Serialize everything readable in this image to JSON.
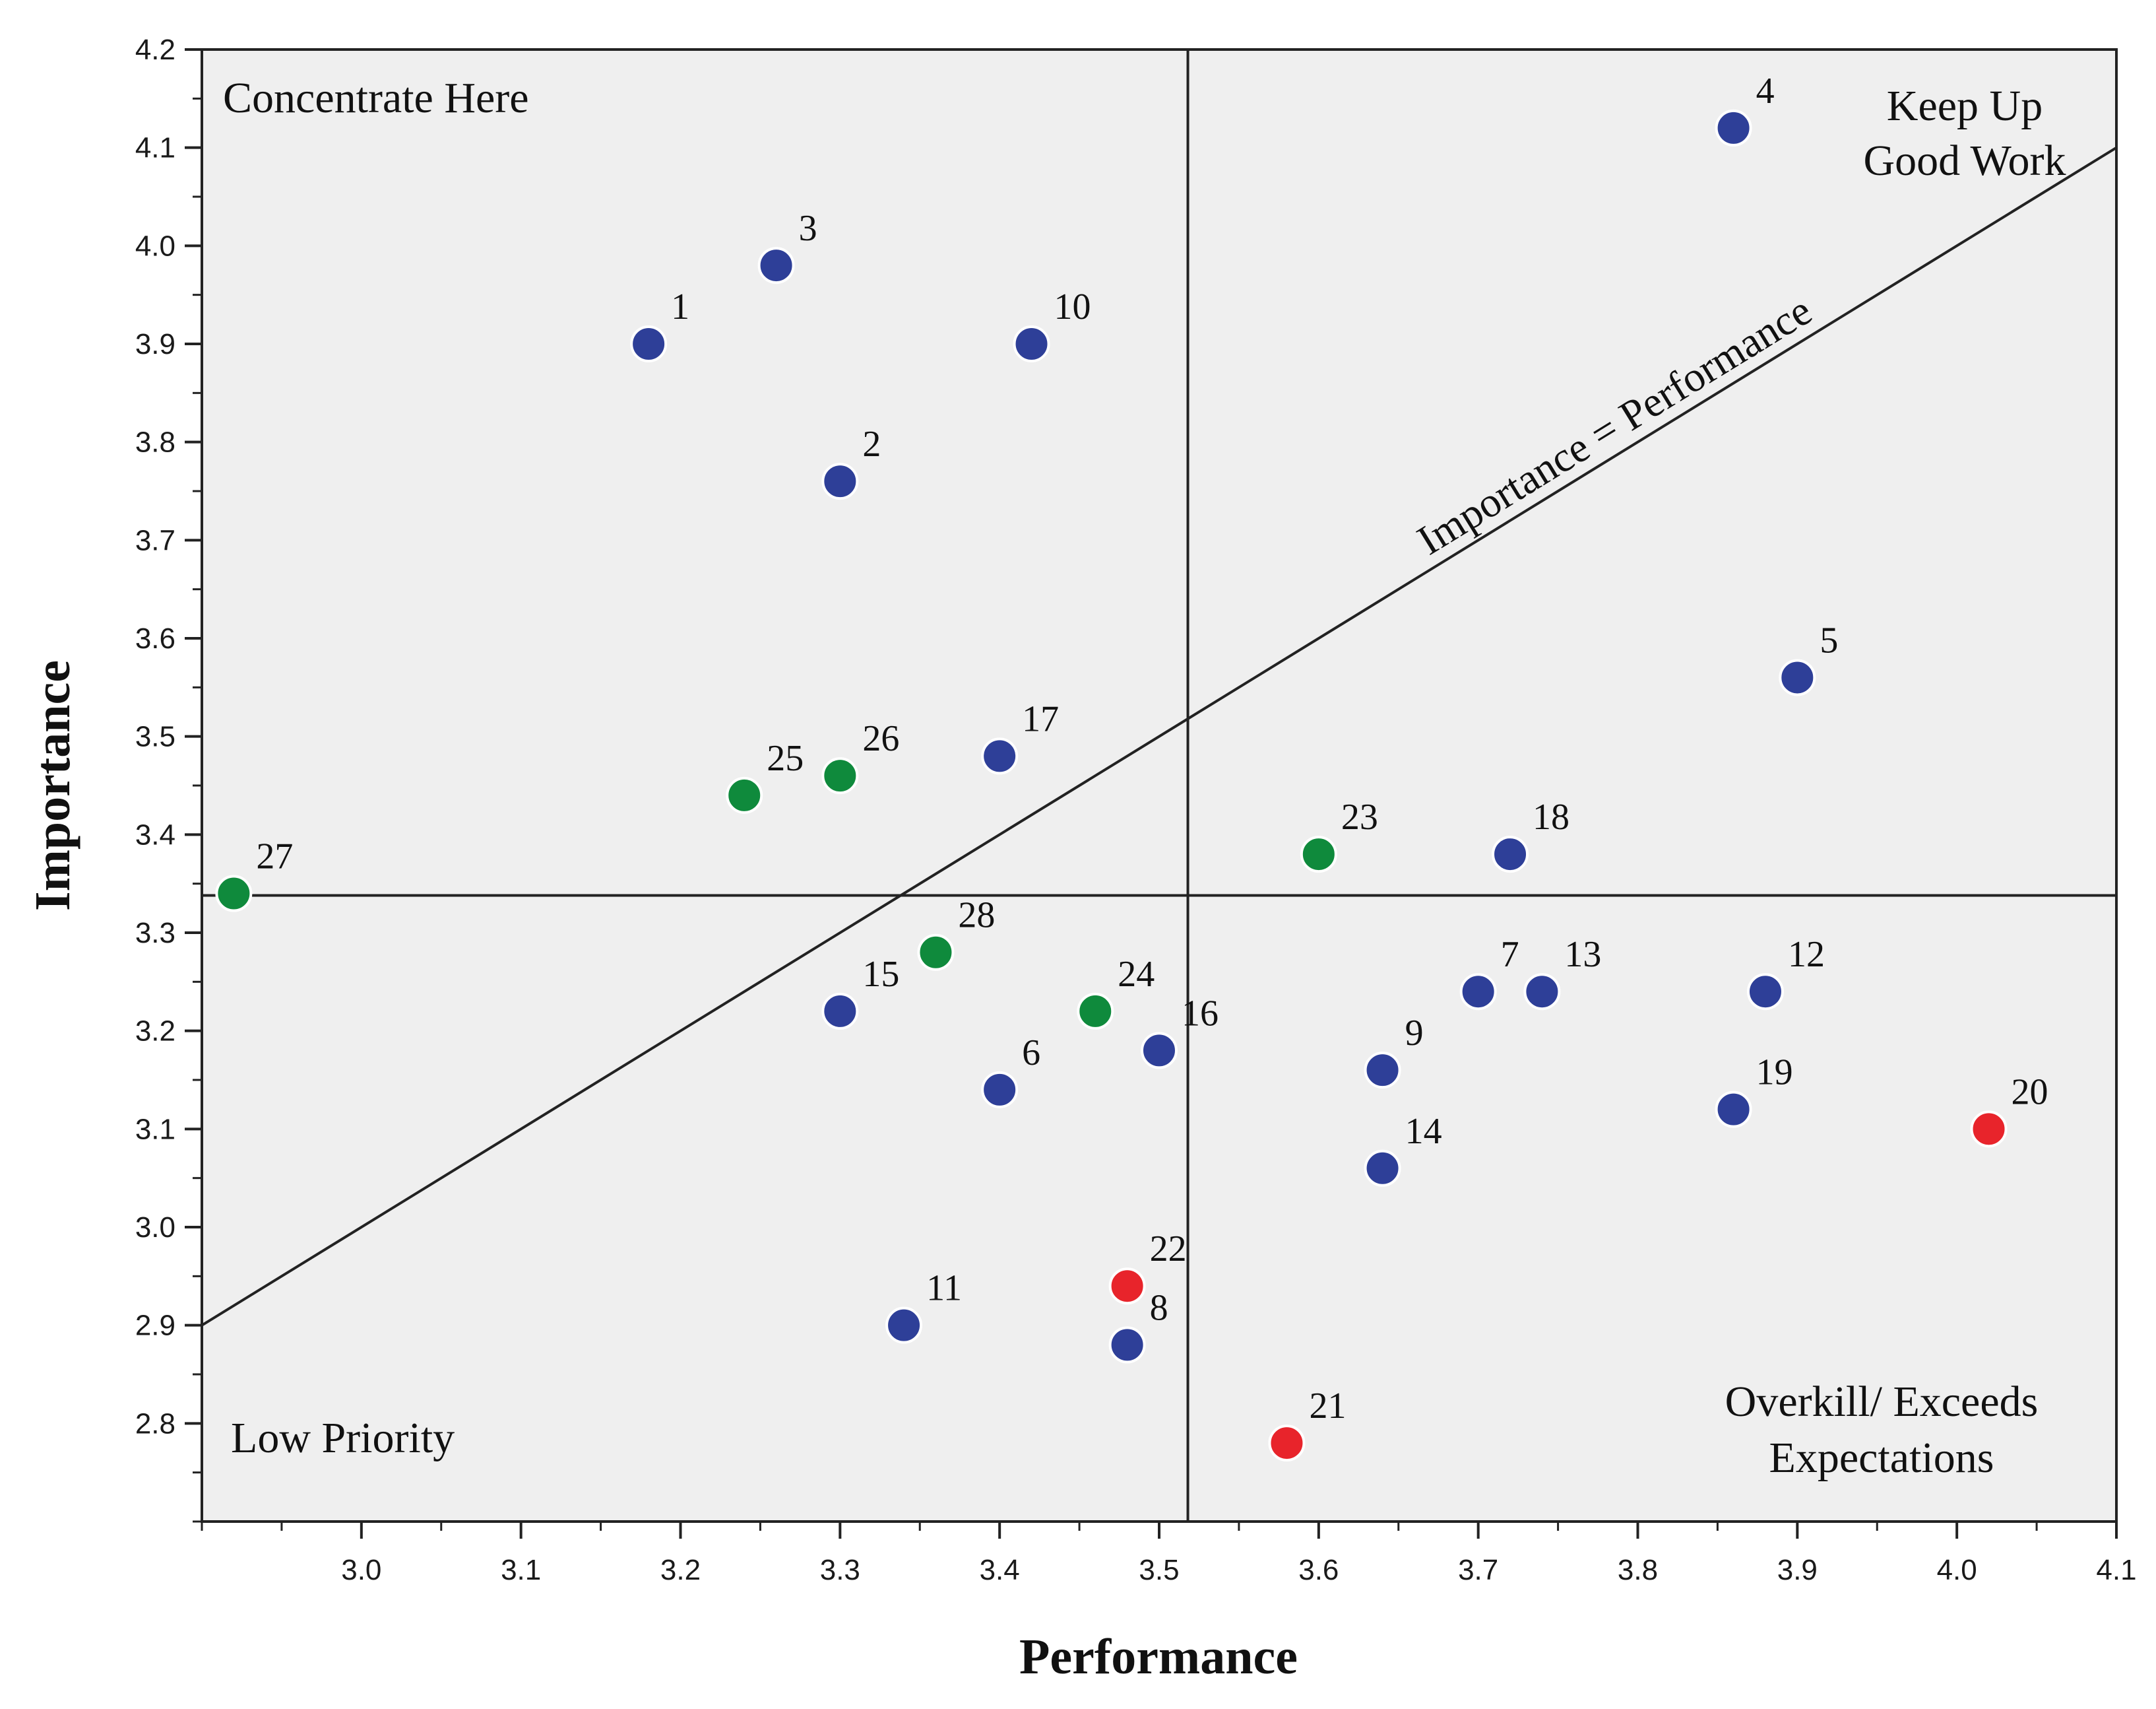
{
  "chart_data": {
    "type": "scatter",
    "title": "",
    "xlabel": "Performance",
    "ylabel": "Importance",
    "xlim": [
      2.9,
      4.1
    ],
    "ylim": [
      2.7,
      4.2
    ],
    "x_ticks": [
      "3.0",
      "3.1",
      "3.2",
      "3.3",
      "3.4",
      "3.5",
      "3.6",
      "3.7",
      "3.8",
      "3.9",
      "4.0",
      "4.1"
    ],
    "y_ticks": [
      "2.8",
      "2.9",
      "3.0",
      "3.1",
      "3.2",
      "3.3",
      "3.4",
      "3.5",
      "3.6",
      "3.7",
      "3.8",
      "3.9",
      "4.0",
      "4.1",
      "4.2"
    ],
    "mean_performance": 3.518,
    "mean_importance": 3.338,
    "diagonal": {
      "label": "Importance = Performance",
      "from": [
        2.9,
        2.9
      ],
      "to": [
        4.1,
        4.1
      ]
    },
    "quadrant_labels": {
      "top_left": "Concentrate Here",
      "top_right_line1": "Keep Up",
      "top_right_line2": "Good Work",
      "bottom_left": "Low Priority",
      "bottom_right_line1": "Overkill/ Exceeds",
      "bottom_right_line2": "Expectations"
    },
    "colors": {
      "blue": "#2e3f98",
      "green": "#0f8a3c",
      "red": "#e8242b"
    },
    "points": [
      {
        "id": "1",
        "x": 3.18,
        "y": 3.9,
        "color": "blue"
      },
      {
        "id": "2",
        "x": 3.3,
        "y": 3.76,
        "color": "blue"
      },
      {
        "id": "3",
        "x": 3.26,
        "y": 3.98,
        "color": "blue"
      },
      {
        "id": "4",
        "x": 3.86,
        "y": 4.12,
        "color": "blue"
      },
      {
        "id": "5",
        "x": 3.9,
        "y": 3.56,
        "color": "blue"
      },
      {
        "id": "6",
        "x": 3.4,
        "y": 3.14,
        "color": "blue"
      },
      {
        "id": "7",
        "x": 3.7,
        "y": 3.24,
        "color": "blue"
      },
      {
        "id": "8",
        "x": 3.48,
        "y": 2.88,
        "color": "blue"
      },
      {
        "id": "9",
        "x": 3.64,
        "y": 3.16,
        "color": "blue"
      },
      {
        "id": "10",
        "x": 3.42,
        "y": 3.9,
        "color": "blue"
      },
      {
        "id": "11",
        "x": 3.34,
        "y": 2.9,
        "color": "blue"
      },
      {
        "id": "12",
        "x": 3.88,
        "y": 3.24,
        "color": "blue"
      },
      {
        "id": "13",
        "x": 3.74,
        "y": 3.24,
        "color": "blue"
      },
      {
        "id": "14",
        "x": 3.64,
        "y": 3.06,
        "color": "blue"
      },
      {
        "id": "15",
        "x": 3.3,
        "y": 3.22,
        "color": "blue"
      },
      {
        "id": "16",
        "x": 3.5,
        "y": 3.18,
        "color": "blue"
      },
      {
        "id": "17",
        "x": 3.4,
        "y": 3.48,
        "color": "blue"
      },
      {
        "id": "18",
        "x": 3.72,
        "y": 3.38,
        "color": "blue"
      },
      {
        "id": "19",
        "x": 3.86,
        "y": 3.12,
        "color": "blue"
      },
      {
        "id": "20",
        "x": 4.02,
        "y": 3.1,
        "color": "red"
      },
      {
        "id": "21",
        "x": 3.58,
        "y": 2.78,
        "color": "red"
      },
      {
        "id": "22",
        "x": 3.48,
        "y": 2.94,
        "color": "red"
      },
      {
        "id": "23",
        "x": 3.6,
        "y": 3.38,
        "color": "green"
      },
      {
        "id": "24",
        "x": 3.46,
        "y": 3.22,
        "color": "green"
      },
      {
        "id": "25",
        "x": 3.24,
        "y": 3.44,
        "color": "green"
      },
      {
        "id": "26",
        "x": 3.3,
        "y": 3.46,
        "color": "green"
      },
      {
        "id": "27",
        "x": 2.92,
        "y": 3.34,
        "color": "green"
      },
      {
        "id": "28",
        "x": 3.36,
        "y": 3.28,
        "color": "green"
      }
    ]
  }
}
